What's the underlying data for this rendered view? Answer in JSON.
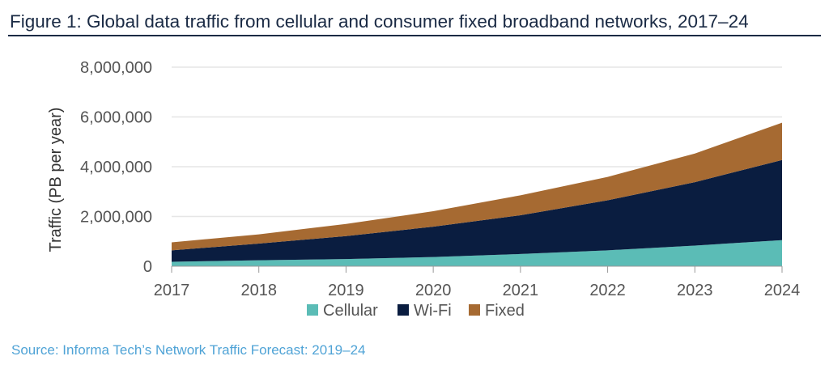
{
  "title": "Figure 1: Global data traffic from cellular and consumer fixed broadband networks, 2017–24",
  "source": "Source: Informa Tech’s Network Traffic Forecast: 2019–24",
  "chart_data": {
    "type": "area",
    "stacked": true,
    "title": "Figure 1: Global data traffic from cellular and consumer fixed broadband networks, 2017–24",
    "xlabel": "",
    "ylabel": "Traffic (PB per year)",
    "x": [
      "2017",
      "2018",
      "2019",
      "2020",
      "2021",
      "2022",
      "2023",
      "2024"
    ],
    "ylim": [
      0,
      8000000
    ],
    "yticks": [
      0,
      2000000,
      4000000,
      6000000,
      8000000
    ],
    "ytick_labels": [
      "0",
      "2,000,000",
      "4,000,000",
      "6,000,000",
      "8,000,000"
    ],
    "grid": true,
    "legend_position": "bottom",
    "series": [
      {
        "name": "Cellular",
        "color": "#5bbcb6",
        "values": [
          180000,
          240000,
          290000,
          370000,
          490000,
          640000,
          830000,
          1050000
        ]
      },
      {
        "name": "Wi-Fi",
        "color": "#0a1d40",
        "values": [
          460000,
          670000,
          920000,
          1220000,
          1560000,
          2010000,
          2550000,
          3220000
        ]
      },
      {
        "name": "Fixed",
        "color": "#a66a32",
        "values": [
          320000,
          370000,
          490000,
          620000,
          800000,
          940000,
          1150000,
          1500000
        ]
      }
    ]
  }
}
